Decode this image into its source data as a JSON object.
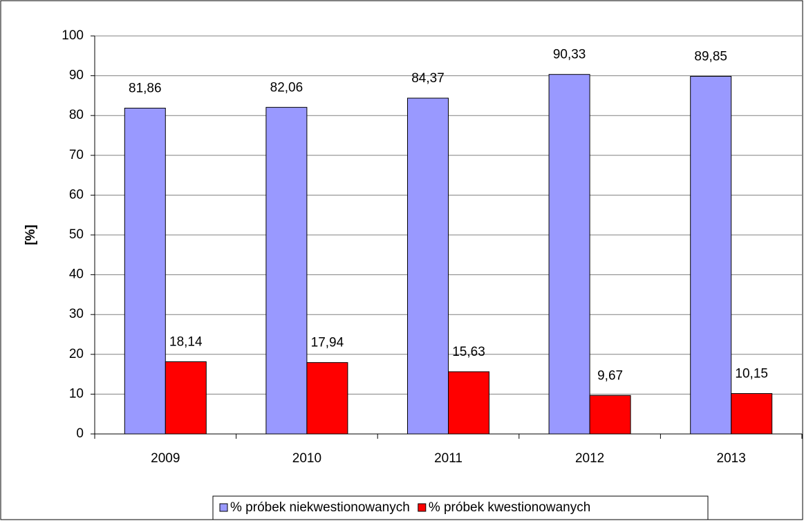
{
  "chart_data": {
    "type": "bar",
    "y_label": "[%]",
    "categories": [
      "2009",
      "2010",
      "2011",
      "2012",
      "2013"
    ],
    "series": [
      {
        "name": "% próbek niekwestionowanych",
        "color": "#9999ff",
        "values": [
          81.86,
          82.06,
          84.37,
          90.33,
          89.85
        ],
        "value_labels": [
          "81,86",
          "82,06",
          "84,37",
          "90,33",
          "89,85"
        ]
      },
      {
        "name": "% próbek kwestionowanych",
        "color": "#ff0000",
        "values": [
          18.14,
          17.94,
          15.63,
          9.67,
          10.15
        ],
        "value_labels": [
          "18,14",
          "17,94",
          "15,63",
          "9,67",
          "10,15"
        ]
      }
    ],
    "ylim": [
      0,
      100
    ],
    "yticks": [
      0,
      10,
      20,
      30,
      40,
      50,
      60,
      70,
      80,
      90,
      100
    ],
    "grid": true,
    "legend": "bottom"
  }
}
